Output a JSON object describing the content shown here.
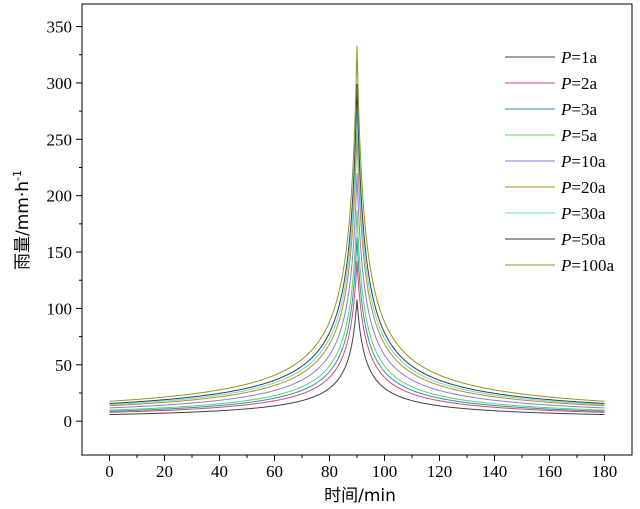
{
  "chart_data": {
    "type": "line",
    "xlabel": "时间/min",
    "ylabel_main": "雨量/mm·h",
    "ylabel_sup": "-1",
    "xlim": [
      -10,
      190
    ],
    "ylim": [
      -30,
      370
    ],
    "x_ticks": [
      0,
      20,
      40,
      60,
      80,
      100,
      120,
      140,
      160,
      180
    ],
    "y_ticks": [
      0,
      50,
      100,
      150,
      200,
      250,
      300,
      350
    ],
    "peak_time": 90,
    "legend_position": "top-right",
    "series": [
      {
        "name": "P=1a",
        "p_label": "P",
        "rest_label": "=1a",
        "color": "#404040",
        "peak": 108,
        "x": [
          0,
          30,
          60,
          75,
          85,
          88,
          90,
          92,
          95,
          105,
          120,
          150,
          180
        ],
        "y": [
          6,
          9,
          14,
          24,
          45,
          68,
          108,
          68,
          45,
          24,
          14,
          9,
          6
        ]
      },
      {
        "name": "P=2a",
        "p_label": "P",
        "rest_label": "=2a",
        "color": "#d9486a",
        "peak": 142,
        "x": [
          0,
          30,
          60,
          75,
          85,
          88,
          90,
          92,
          95,
          105,
          120,
          150,
          180
        ],
        "y": [
          8,
          11,
          18,
          31,
          59,
          90,
          142,
          90,
          59,
          31,
          18,
          11,
          8
        ]
      },
      {
        "name": "P=3a",
        "p_label": "P",
        "rest_label": "=3a",
        "color": "#2f8fb8",
        "peak": 163,
        "x": [
          0,
          30,
          60,
          75,
          85,
          88,
          90,
          92,
          95,
          105,
          120,
          150,
          180
        ],
        "y": [
          9,
          13,
          21,
          35,
          67,
          103,
          163,
          103,
          67,
          35,
          21,
          13,
          9
        ]
      },
      {
        "name": "P=5a",
        "p_label": "P",
        "rest_label": "=5a",
        "color": "#5fd35f",
        "peak": 187,
        "x": [
          0,
          30,
          60,
          75,
          85,
          88,
          90,
          92,
          95,
          105,
          120,
          150,
          180
        ],
        "y": [
          10,
          15,
          24,
          41,
          77,
          119,
          187,
          119,
          77,
          41,
          24,
          15,
          10
        ]
      },
      {
        "name": "P=10a",
        "p_label": "P",
        "rest_label": "=10a",
        "color": "#8a7ce0",
        "peak": 220,
        "x": [
          0,
          30,
          60,
          75,
          85,
          88,
          90,
          92,
          95,
          105,
          120,
          150,
          180
        ],
        "y": [
          12,
          18,
          28,
          48,
          91,
          140,
          220,
          140,
          91,
          48,
          28,
          18,
          12
        ]
      },
      {
        "name": "P=20a",
        "p_label": "P",
        "rest_label": "=20a",
        "color": "#b8901c",
        "peak": 256,
        "x": [
          0,
          30,
          60,
          75,
          85,
          88,
          90,
          92,
          95,
          105,
          120,
          150,
          180
        ],
        "y": [
          14,
          21,
          33,
          56,
          106,
          163,
          256,
          163,
          106,
          56,
          33,
          21,
          14
        ]
      },
      {
        "name": "P=30a",
        "p_label": "P",
        "rest_label": "=30a",
        "color": "#5fe0d8",
        "peak": 275,
        "x": [
          0,
          30,
          60,
          75,
          85,
          88,
          90,
          92,
          95,
          105,
          120,
          150,
          180
        ],
        "y": [
          15,
          22,
          35,
          60,
          114,
          175,
          275,
          175,
          114,
          60,
          35,
          22,
          15
        ]
      },
      {
        "name": "P=50a",
        "p_label": "P",
        "rest_label": "=50a",
        "color": "#3a3a52",
        "peak": 299,
        "x": [
          0,
          30,
          60,
          75,
          85,
          88,
          90,
          92,
          95,
          105,
          120,
          150,
          180
        ],
        "y": [
          16,
          24,
          38,
          65,
          124,
          190,
          299,
          190,
          124,
          65,
          38,
          24,
          16
        ]
      },
      {
        "name": "P=100a",
        "p_label": "P",
        "rest_label": "=100a",
        "color": "#8a9a1e",
        "peak": 333,
        "x": [
          0,
          30,
          60,
          75,
          85,
          88,
          90,
          92,
          95,
          105,
          120,
          150,
          180
        ],
        "y": [
          18,
          27,
          43,
          73,
          138,
          212,
          333,
          212,
          138,
          73,
          43,
          27,
          18
        ]
      }
    ]
  }
}
